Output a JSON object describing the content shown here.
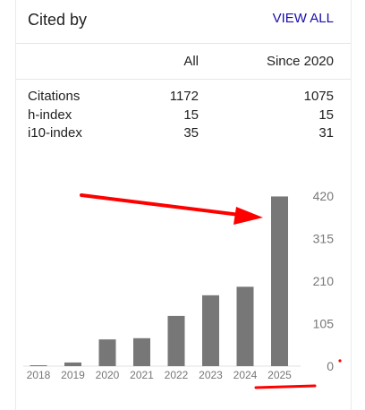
{
  "header": {
    "title": "Cited by",
    "view_all": "VIEW ALL"
  },
  "table": {
    "col_all": "All",
    "col_since": "Since 2020",
    "rows": [
      {
        "label": "Citations",
        "all": "1172",
        "since": "1075"
      },
      {
        "label": "h-index",
        "all": "15",
        "since": "15"
      },
      {
        "label": "i10-index",
        "all": "35",
        "since": "31"
      }
    ]
  },
  "colors": {
    "bar": "#777777",
    "annotation": "#ff0000",
    "link": "#1a0dab"
  },
  "chart_data": {
    "type": "bar",
    "title": "",
    "xlabel": "",
    "ylabel": "",
    "categories": [
      "2018",
      "2019",
      "2020",
      "2021",
      "2022",
      "2023",
      "2024",
      "2025"
    ],
    "values": [
      2,
      9,
      66,
      69,
      124,
      175,
      196,
      419
    ],
    "y_ticks": [
      0,
      105,
      210,
      315,
      420
    ],
    "ylim": [
      0,
      420
    ],
    "y_axis_position": "right",
    "grid": false
  },
  "annotations": {
    "arrow": "red arrow pointing to the 2025 bar",
    "underline": "red underline beneath the 2025 label"
  }
}
